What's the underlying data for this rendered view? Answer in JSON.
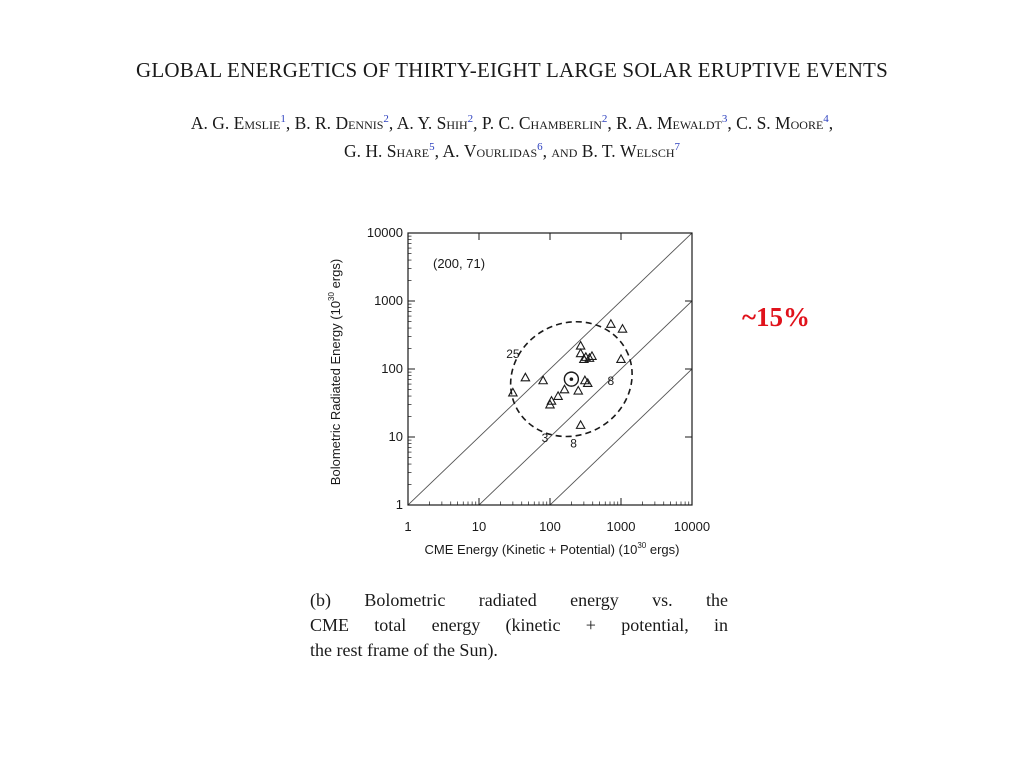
{
  "paper": {
    "title": "GLOBAL ENERGETICS OF THIRTY-EIGHT LARGE SOLAR ERUPTIVE EVENTS",
    "authors": [
      {
        "initials": "A. G.",
        "surname": "Emslie",
        "aff": "1",
        "sep": ", "
      },
      {
        "initials": "B. R.",
        "surname": "Dennis",
        "aff": "2",
        "sep": ", "
      },
      {
        "initials": "A. Y.",
        "surname": "Shih",
        "aff": "2",
        "sep": ", "
      },
      {
        "initials": "P. C.",
        "surname": "Chamberlin",
        "aff": "2",
        "sep": ", "
      },
      {
        "initials": "R. A.",
        "surname": "Mewaldt",
        "aff": "3",
        "sep": ", "
      },
      {
        "initials": "C. S.",
        "surname": "Moore",
        "aff": "4",
        "sep": ","
      },
      {
        "initials": "G. H.",
        "surname": "Share",
        "aff": "5",
        "sep": ", "
      },
      {
        "initials": "A.",
        "surname": "Vourlidas",
        "aff": "6",
        "sep": ", "
      },
      {
        "initials": "B. T.",
        "surname": "Welsch",
        "aff": "7",
        "sep": ""
      }
    ],
    "and_word": "and"
  },
  "annotation": {
    "text": "~15%",
    "color": "#e0121b"
  },
  "caption": {
    "lines": [
      "(b) Bolometric radiated energy vs. the",
      "CME total energy (kinetic + potential, in",
      "the rest frame of the Sun)."
    ]
  },
  "chart_data": {
    "type": "scatter",
    "x_scale": "log",
    "y_scale": "log",
    "xlim": [
      1,
      10000
    ],
    "ylim": [
      1,
      10000
    ],
    "x_ticks": [
      "1",
      "10",
      "100",
      "1000",
      "10000"
    ],
    "y_ticks": [
      "1",
      "10",
      "100",
      "1000",
      "10000"
    ],
    "xlabel": "CME Energy (Kinetic + Potential) (10",
    "xlabel_exp": "30",
    "xlabel_end": " ergs)",
    "ylabel": "Bolometric Radiated Energy (10",
    "ylabel_exp": "30",
    "ylabel_end": " ergs)",
    "inset_label": "(200, 71)",
    "mean_point": {
      "x": 200,
      "y": 71
    },
    "reference_lines": [
      {
        "ratio": 1
      },
      {
        "ratio": 0.1
      },
      {
        "ratio": 0.01
      }
    ],
    "ellipse_labels": [
      {
        "text": "25",
        "x": 30,
        "y": 145
      },
      {
        "text": "8",
        "x": 720,
        "y": 58
      },
      {
        "text": "3",
        "x": 85,
        "y": 8.5
      },
      {
        "text": "8",
        "x": 215,
        "y": 7
      }
    ],
    "points": [
      {
        "x": 30,
        "y": 45
      },
      {
        "x": 45,
        "y": 75
      },
      {
        "x": 80,
        "y": 68
      },
      {
        "x": 130,
        "y": 40
      },
      {
        "x": 100,
        "y": 30
      },
      {
        "x": 105,
        "y": 34
      },
      {
        "x": 160,
        "y": 50
      },
      {
        "x": 250,
        "y": 48
      },
      {
        "x": 310,
        "y": 68
      },
      {
        "x": 340,
        "y": 62
      },
      {
        "x": 270,
        "y": 170
      },
      {
        "x": 270,
        "y": 220
      },
      {
        "x": 320,
        "y": 150
      },
      {
        "x": 300,
        "y": 140
      },
      {
        "x": 360,
        "y": 145
      },
      {
        "x": 390,
        "y": 155
      },
      {
        "x": 720,
        "y": 460
      },
      {
        "x": 1050,
        "y": 390
      },
      {
        "x": 1000,
        "y": 140
      },
      {
        "x": 270,
        "y": 15
      },
      {
        "x": 210,
        "y": 72
      }
    ]
  }
}
